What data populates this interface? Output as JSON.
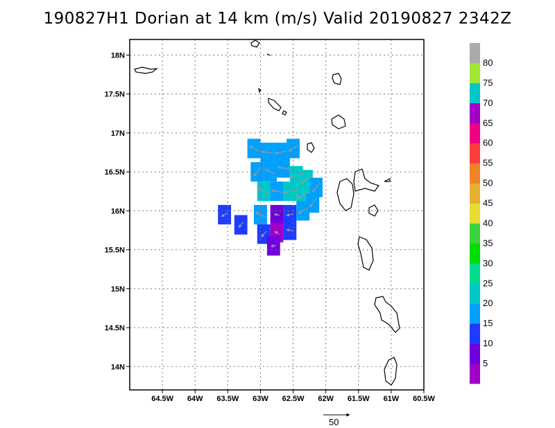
{
  "title": "190827H1 Dorian at 14 km (m/s) Valid 20190827  2342Z",
  "chart_data": {
    "type": "heatmap",
    "title": "190827H1 Dorian at 14 km (m/s) Valid 20190827  2342Z",
    "xlabel": "",
    "ylabel": "",
    "xlim": [
      -65.0,
      -60.5
    ],
    "ylim": [
      13.7,
      18.2
    ],
    "x_ticks": [
      -64.5,
      -64.0,
      -63.5,
      -63.0,
      -62.5,
      -62.0,
      -61.5,
      -61.0,
      -60.5
    ],
    "x_tick_labels": [
      "64.5W",
      "64W",
      "63.5W",
      "63W",
      "62.5W",
      "62W",
      "61.5W",
      "61W",
      "60.5W"
    ],
    "y_ticks": [
      14.0,
      14.5,
      15.0,
      15.5,
      16.0,
      16.5,
      17.0,
      17.5,
      18.0
    ],
    "y_tick_labels": [
      "14N",
      "14.5N",
      "15N",
      "15.5N",
      "16N",
      "16.5N",
      "17N",
      "17.5N",
      "18N"
    ],
    "grid": true,
    "colorbar": {
      "levels": [
        5,
        10,
        15,
        20,
        25,
        30,
        35,
        40,
        45,
        50,
        55,
        60,
        65,
        70,
        75,
        80
      ],
      "labels": [
        "5",
        "10",
        "15",
        "20",
        "25",
        "30",
        "35",
        "40",
        "45",
        "50",
        "55",
        "60",
        "65",
        "70",
        "75",
        "80"
      ],
      "colors": [
        "#a000c8",
        "#6e00dc",
        "#1e3cff",
        "#00a0ff",
        "#00c8c8",
        "#00dc8c",
        "#00dc00",
        "#3cd23c",
        "#e6dc32",
        "#e6af2d",
        "#f08228",
        "#fa3c3c",
        "#f00082",
        "#a000c8",
        "#00c8c8",
        "#a0e632",
        "#aaaaaa"
      ]
    },
    "wind_cells": [
      {
        "lon": -63.1,
        "lat": 16.8,
        "speed": 18
      },
      {
        "lon": -62.9,
        "lat": 16.75,
        "speed": 18
      },
      {
        "lon": -62.7,
        "lat": 16.75,
        "speed": 18
      },
      {
        "lon": -62.5,
        "lat": 16.8,
        "speed": 18
      },
      {
        "lon": -63.05,
        "lat": 16.5,
        "speed": 17
      },
      {
        "lon": -62.85,
        "lat": 16.5,
        "speed": 17
      },
      {
        "lon": -62.65,
        "lat": 16.55,
        "speed": 18
      },
      {
        "lon": -62.45,
        "lat": 16.45,
        "speed": 23
      },
      {
        "lon": -62.3,
        "lat": 16.4,
        "speed": 22
      },
      {
        "lon": -62.15,
        "lat": 16.3,
        "speed": 18
      },
      {
        "lon": -62.95,
        "lat": 16.25,
        "speed": 22
      },
      {
        "lon": -62.75,
        "lat": 16.25,
        "speed": 18
      },
      {
        "lon": -62.55,
        "lat": 16.25,
        "speed": 22
      },
      {
        "lon": -62.35,
        "lat": 16.2,
        "speed": 22
      },
      {
        "lon": -62.2,
        "lat": 16.1,
        "speed": 18
      },
      {
        "lon": -63.0,
        "lat": 15.95,
        "speed": 17
      },
      {
        "lon": -62.75,
        "lat": 15.95,
        "speed": 8
      },
      {
        "lon": -62.55,
        "lat": 15.95,
        "speed": 12
      },
      {
        "lon": -62.35,
        "lat": 16.0,
        "speed": 17
      },
      {
        "lon": -62.95,
        "lat": 15.7,
        "speed": 12
      },
      {
        "lon": -62.75,
        "lat": 15.72,
        "speed": 4
      },
      {
        "lon": -62.55,
        "lat": 15.75,
        "speed": 12
      },
      {
        "lon": -62.8,
        "lat": 15.55,
        "speed": 8
      },
      {
        "lon": -63.55,
        "lat": 15.95,
        "speed": 12
      },
      {
        "lon": -63.3,
        "lat": 15.82,
        "speed": 12
      }
    ],
    "reference_vector": {
      "label": "50",
      "speed": 50
    }
  }
}
